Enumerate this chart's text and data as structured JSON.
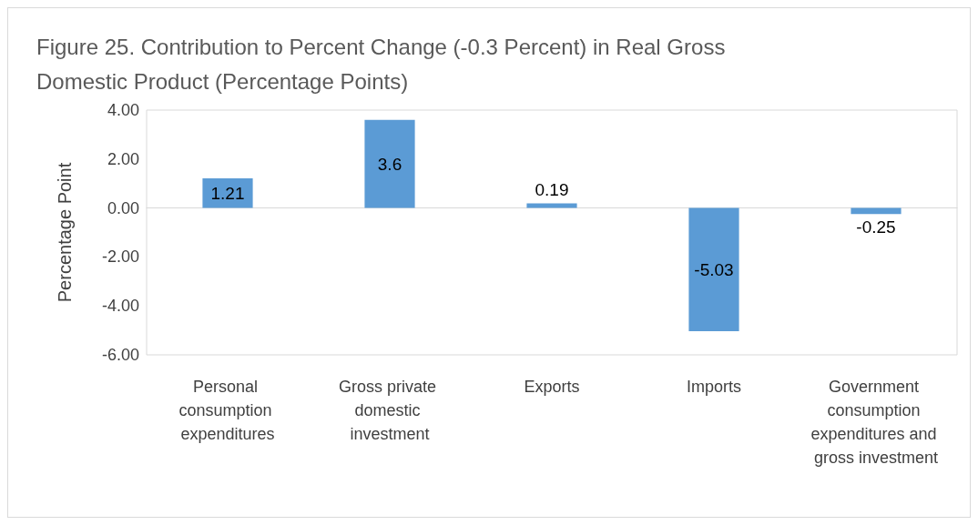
{
  "chart_data": {
    "type": "bar",
    "title": "Figure 25. Contribution to Percent Change (-0.3 Percent) in Real Gross Domestic Product (Percentage Points)",
    "ylabel": "Percentage Point",
    "categories": [
      "Personal consumption expenditures",
      "Gross private domestic investment",
      "Exports",
      "Imports",
      "Government consumption expenditures and gross investment"
    ],
    "values": [
      1.21,
      3.6,
      0.19,
      -5.03,
      -0.25
    ],
    "color": "#5b9bd5",
    "ylim": [
      -6,
      4
    ],
    "yticks": [
      {
        "value": -6,
        "label": "-6.00"
      },
      {
        "value": -4,
        "label": "-4.00"
      },
      {
        "value": -2,
        "label": "-2.00"
      },
      {
        "value": 0,
        "label": "0.00"
      },
      {
        "value": 2,
        "label": "2.00"
      },
      {
        "value": 4,
        "label": "4.00"
      }
    ],
    "data_labels": true
  }
}
